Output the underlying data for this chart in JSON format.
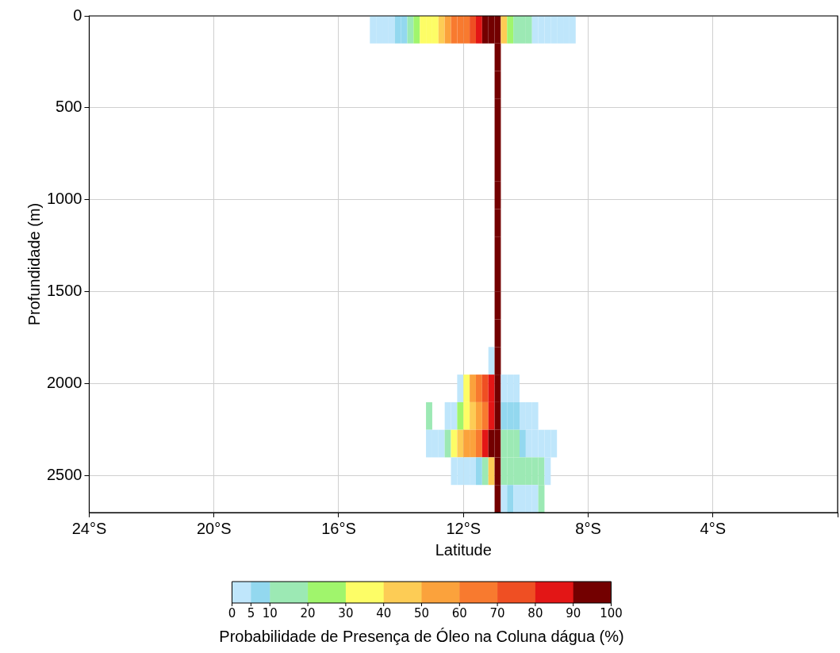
{
  "chart_data": {
    "type": "heatmap",
    "xlabel": "Latitude",
    "ylabel": "Profundidade (m)",
    "clabel": "Probabilidade de Presença de Óleo na Coluna dágua (%)",
    "xlim": [
      -24,
      0
    ],
    "ylim": [
      2700,
      0
    ],
    "xticks": [
      {
        "value": -24,
        "label": "24°S"
      },
      {
        "value": -20,
        "label": "20°S"
      },
      {
        "value": -16,
        "label": "16°S"
      },
      {
        "value": -12,
        "label": "12°S"
      },
      {
        "value": -8,
        "label": "8°S"
      },
      {
        "value": -4,
        "label": "4°S"
      },
      {
        "value": 0,
        "label": null
      }
    ],
    "yticks": [
      0,
      500,
      1000,
      1500,
      2000,
      2500
    ],
    "grid": true,
    "clim": [
      0,
      100
    ],
    "cticks": [
      0,
      5,
      10,
      20,
      30,
      40,
      50,
      60,
      70,
      80,
      90,
      100
    ],
    "colors": [
      "#bfe6fb",
      "#93d8ef",
      "#9ce9b4",
      "#a0f56c",
      "#fdfd66",
      "#fdcc55",
      "#fba23c",
      "#f87a2f",
      "#ef4f23",
      "#e31616",
      "#730000"
    ],
    "x": [
      -14.9,
      -14.7,
      -14.5,
      -14.3,
      -14.1,
      -13.9,
      -13.7,
      -13.5,
      -13.3,
      -13.1,
      -12.9,
      -12.7,
      -12.5,
      -12.3,
      -12.1,
      -11.9,
      -11.7,
      -11.5,
      -11.3,
      -11.1,
      -10.9,
      -10.7,
      -10.5,
      -10.3,
      -10.1,
      -9.9,
      -9.7,
      -9.5,
      -9.3,
      -9.1,
      -8.9,
      -8.7,
      -8.5
    ],
    "y": [
      75,
      225,
      375,
      525,
      675,
      825,
      975,
      1125,
      1275,
      1425,
      1575,
      1725,
      1875,
      2025,
      2175,
      2325,
      2475,
      2625
    ],
    "cells": [
      [
        2.5,
        2.5,
        2.5,
        2.5,
        7.5,
        7.5,
        15,
        25,
        35,
        35,
        35,
        45,
        55,
        65,
        65,
        65,
        75,
        85,
        95,
        95,
        95,
        45,
        25,
        15,
        15,
        15,
        2.5,
        2.5,
        2.5,
        2.5,
        2.5,
        2.5,
        2.5
      ],
      [
        null,
        null,
        null,
        null,
        null,
        null,
        null,
        null,
        null,
        null,
        null,
        null,
        null,
        null,
        null,
        null,
        null,
        null,
        null,
        null,
        95,
        null,
        null,
        null,
        null,
        null,
        null,
        null,
        null,
        null,
        null,
        null,
        null
      ],
      [
        null,
        null,
        null,
        null,
        null,
        null,
        null,
        null,
        null,
        null,
        null,
        null,
        null,
        null,
        null,
        null,
        null,
        null,
        null,
        null,
        95,
        null,
        null,
        null,
        null,
        null,
        null,
        null,
        null,
        null,
        null,
        null,
        null
      ],
      [
        null,
        null,
        null,
        null,
        null,
        null,
        null,
        null,
        null,
        null,
        null,
        null,
        null,
        null,
        null,
        null,
        null,
        null,
        null,
        null,
        95,
        null,
        null,
        null,
        null,
        null,
        null,
        null,
        null,
        null,
        null,
        null,
        null
      ],
      [
        null,
        null,
        null,
        null,
        null,
        null,
        null,
        null,
        null,
        null,
        null,
        null,
        null,
        null,
        null,
        null,
        null,
        null,
        null,
        null,
        95,
        null,
        null,
        null,
        null,
        null,
        null,
        null,
        null,
        null,
        null,
        null,
        null
      ],
      [
        null,
        null,
        null,
        null,
        null,
        null,
        null,
        null,
        null,
        null,
        null,
        null,
        null,
        null,
        null,
        null,
        null,
        null,
        null,
        null,
        95,
        null,
        null,
        null,
        null,
        null,
        null,
        null,
        null,
        null,
        null,
        null,
        null
      ],
      [
        null,
        null,
        null,
        null,
        null,
        null,
        null,
        null,
        null,
        null,
        null,
        null,
        null,
        null,
        null,
        null,
        null,
        null,
        null,
        null,
        95,
        null,
        null,
        null,
        null,
        null,
        null,
        null,
        null,
        null,
        null,
        null,
        null
      ],
      [
        null,
        null,
        null,
        null,
        null,
        null,
        null,
        null,
        null,
        null,
        null,
        null,
        null,
        null,
        null,
        null,
        null,
        null,
        null,
        null,
        95,
        null,
        null,
        null,
        null,
        null,
        null,
        null,
        null,
        null,
        null,
        null,
        null
      ],
      [
        null,
        null,
        null,
        null,
        null,
        null,
        null,
        null,
        null,
        null,
        null,
        null,
        null,
        null,
        null,
        null,
        null,
        null,
        null,
        null,
        95,
        null,
        null,
        null,
        null,
        null,
        null,
        null,
        null,
        null,
        null,
        null,
        null
      ],
      [
        null,
        null,
        null,
        null,
        null,
        null,
        null,
        null,
        null,
        null,
        null,
        null,
        null,
        null,
        null,
        null,
        null,
        null,
        null,
        null,
        95,
        null,
        null,
        null,
        null,
        null,
        null,
        null,
        null,
        null,
        null,
        null,
        null
      ],
      [
        null,
        null,
        null,
        null,
        null,
        null,
        null,
        null,
        null,
        null,
        null,
        null,
        null,
        null,
        null,
        null,
        null,
        null,
        null,
        null,
        95,
        null,
        null,
        null,
        null,
        null,
        null,
        null,
        null,
        null,
        null,
        null,
        null
      ],
      [
        null,
        null,
        null,
        null,
        null,
        null,
        null,
        null,
        null,
        null,
        null,
        null,
        null,
        null,
        null,
        null,
        null,
        null,
        null,
        null,
        95,
        null,
        null,
        null,
        null,
        null,
        null,
        null,
        null,
        null,
        null,
        null,
        null
      ],
      [
        null,
        null,
        null,
        null,
        null,
        null,
        null,
        null,
        null,
        null,
        null,
        null,
        null,
        null,
        null,
        null,
        null,
        null,
        null,
        2.5,
        95,
        null,
        null,
        null,
        null,
        null,
        null,
        null,
        null,
        null,
        null,
        null,
        null
      ],
      [
        null,
        null,
        null,
        null,
        null,
        null,
        null,
        null,
        null,
        null,
        null,
        null,
        null,
        null,
        2.5,
        35,
        55,
        65,
        75,
        85,
        95,
        2.5,
        2.5,
        2.5,
        null,
        null,
        null,
        null,
        null,
        null,
        null,
        null,
        null
      ],
      [
        null,
        null,
        null,
        null,
        null,
        null,
        null,
        null,
        null,
        15,
        null,
        null,
        2.5,
        2.5,
        25,
        35,
        45,
        55,
        65,
        85,
        95,
        7.5,
        7.5,
        7.5,
        2.5,
        2.5,
        2.5,
        null,
        null,
        null,
        null,
        null,
        null
      ],
      [
        null,
        null,
        null,
        null,
        null,
        null,
        null,
        null,
        null,
        2.5,
        2.5,
        2.5,
        15,
        35,
        45,
        55,
        55,
        65,
        85,
        95,
        95,
        15,
        15,
        15,
        7.5,
        2.5,
        2.5,
        2.5,
        2.5,
        2.5,
        null,
        null,
        null
      ],
      [
        null,
        null,
        null,
        null,
        null,
        null,
        null,
        null,
        null,
        null,
        null,
        null,
        null,
        2.5,
        2.5,
        2.5,
        2.5,
        7.5,
        15,
        45,
        95,
        15,
        15,
        15,
        15,
        15,
        15,
        15,
        2.5,
        null,
        null,
        null,
        null
      ],
      [
        null,
        null,
        null,
        null,
        null,
        null,
        null,
        null,
        null,
        null,
        null,
        null,
        null,
        null,
        null,
        null,
        null,
        null,
        null,
        null,
        95,
        2.5,
        7.5,
        2.5,
        2.5,
        2.5,
        2.5,
        15,
        null,
        null,
        null,
        null,
        null
      ]
    ]
  }
}
